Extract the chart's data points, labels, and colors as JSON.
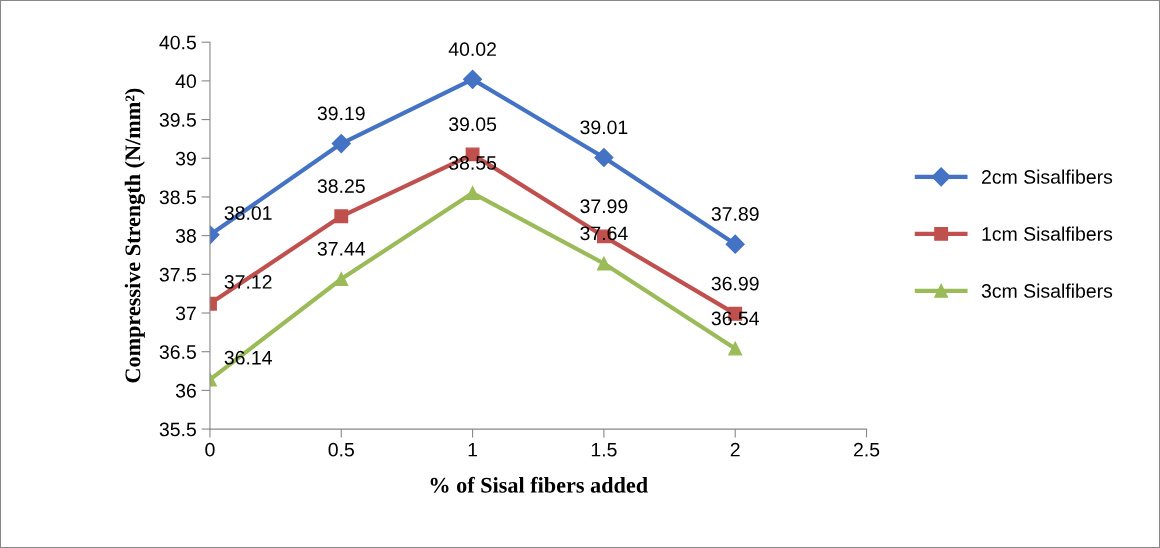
{
  "chart_data": {
    "type": "line",
    "xlabel": "% of Sisal fibers added",
    "ylabel": "Compressive Strength (N/mm²)",
    "x": [
      0,
      0.5,
      1,
      1.5,
      2
    ],
    "series": [
      {
        "name": "2cm Sisalfibers",
        "color": "#4472c4",
        "marker": "diamond",
        "values": [
          38.01,
          39.19,
          40.02,
          39.01,
          37.89
        ]
      },
      {
        "name": "1cm Sisalfibers",
        "color": "#c0504d",
        "marker": "square",
        "values": [
          37.12,
          38.25,
          39.05,
          37.99,
          36.99
        ]
      },
      {
        "name": "3cm Sisalfibers",
        "color": "#9bbb59",
        "marker": "triangle",
        "values": [
          36.14,
          37.44,
          38.55,
          37.64,
          36.54
        ]
      }
    ],
    "xlim": [
      0,
      2.5
    ],
    "xticks": [
      0,
      0.5,
      1,
      1.5,
      2,
      2.5
    ],
    "ylim": [
      35.5,
      40.5
    ],
    "yticks": [
      35.5,
      36,
      36.5,
      37,
      37.5,
      38,
      38.5,
      39,
      39.5,
      40,
      40.5
    ],
    "grid": false,
    "legend": "right",
    "data_labels": true,
    "line_style": "solid"
  }
}
